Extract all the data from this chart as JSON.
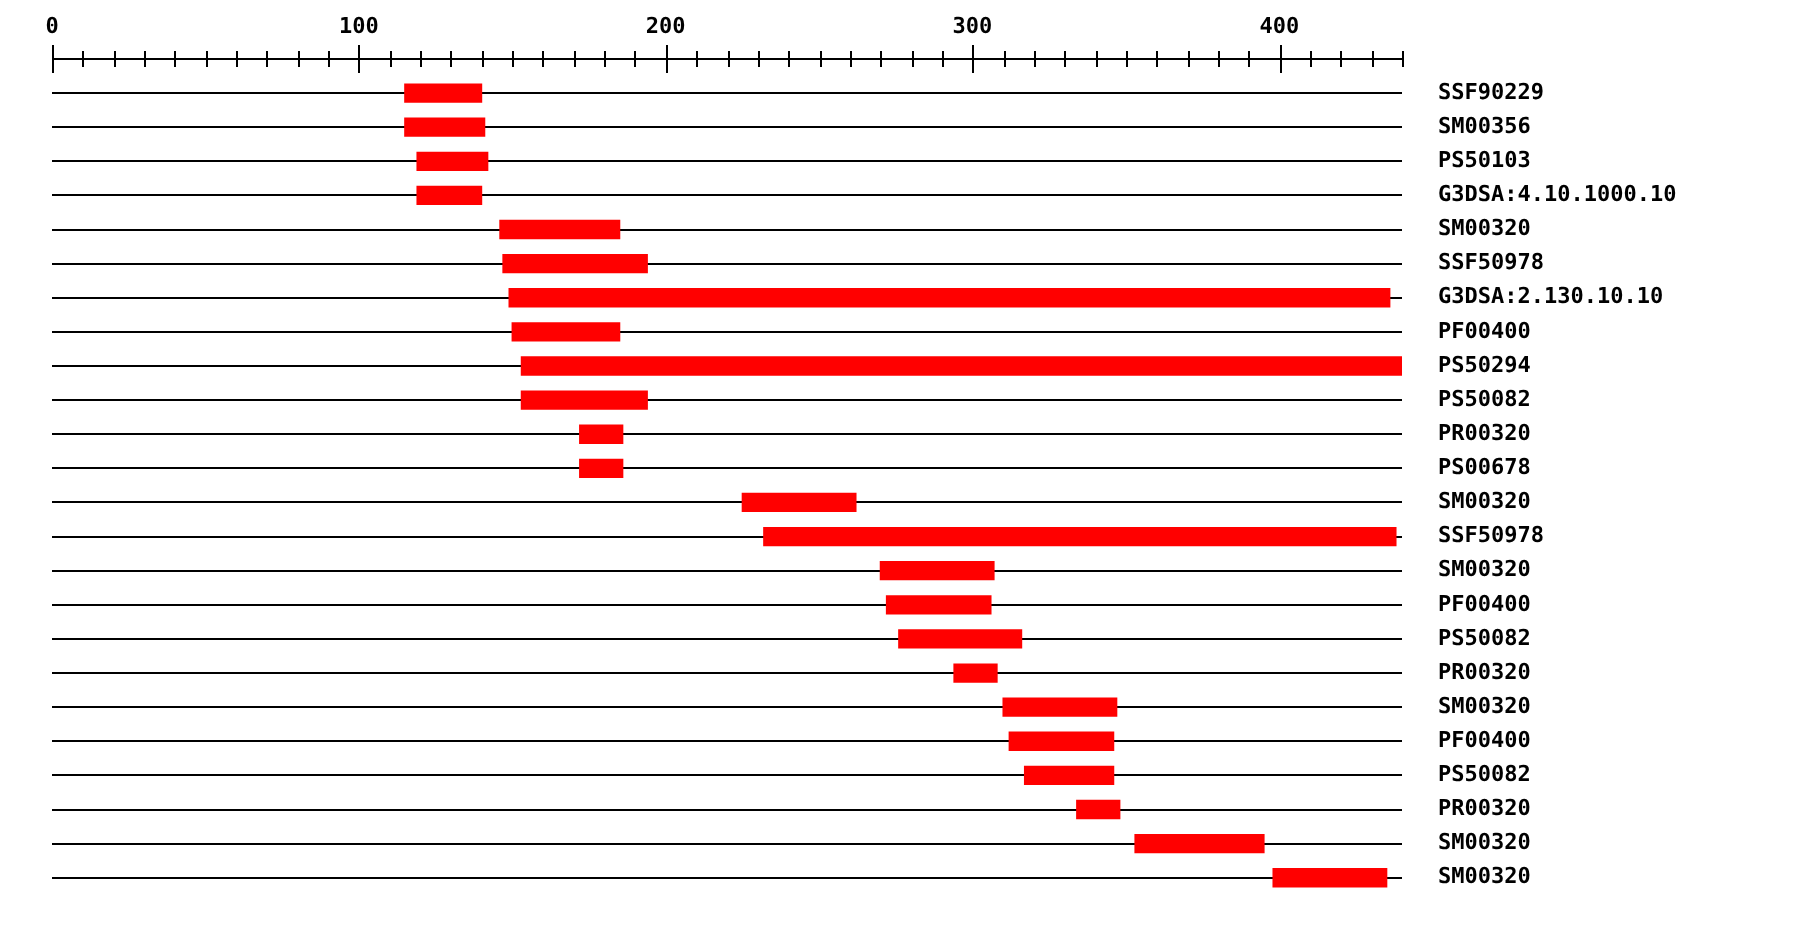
{
  "chart_data": {
    "type": "bar",
    "orientation": "horizontal",
    "categories": [
      "SSF90229",
      "SM00356",
      "PS50103",
      "G3DSA:4.10.1000.10",
      "SM00320",
      "SSF50978",
      "G3DSA:2.130.10.10",
      "PF00400",
      "PS50294",
      "PS50082",
      "PR00320",
      "PS00678",
      "SM00320",
      "SSF50978",
      "SM00320",
      "PF00400",
      "PS50082",
      "PR00320",
      "SM00320",
      "PF00400",
      "PS50082",
      "PR00320",
      "SM00320",
      "SM00320"
    ],
    "base": [
      115,
      115,
      119,
      119,
      146,
      147,
      149,
      150,
      153,
      153,
      172,
      172,
      225,
      232,
      270,
      272,
      276,
      294,
      310,
      312,
      317,
      334,
      353,
      398
    ],
    "values": [
      25,
      26,
      23,
      21,
      39,
      47,
      287,
      35,
      287,
      41,
      14,
      14,
      37,
      206,
      37,
      34,
      40,
      14,
      37,
      34,
      29,
      14,
      42,
      37
    ],
    "color": "#ff0000",
    "xlim": [
      0,
      440
    ],
    "xticks": [
      0,
      {
        "value": 10,
        "label": null
      },
      {
        "value": 20,
        "label": null
      },
      {
        "value": 30,
        "label": null
      },
      {
        "value": 40,
        "label": null
      },
      {
        "value": 50,
        "label": null
      },
      {
        "value": 60,
        "label": null
      },
      {
        "value": 70,
        "label": null
      },
      {
        "value": 80,
        "label": null
      },
      {
        "value": 90,
        "label": null
      },
      100,
      {
        "value": 110,
        "label": null
      },
      {
        "value": 120,
        "label": null
      },
      {
        "value": 130,
        "label": null
      },
      {
        "value": 140,
        "label": null
      },
      {
        "value": 150,
        "label": null
      },
      {
        "value": 160,
        "label": null
      },
      {
        "value": 170,
        "label": null
      },
      {
        "value": 180,
        "label": null
      },
      {
        "value": 190,
        "label": null
      },
      200,
      {
        "value": 210,
        "label": null
      },
      {
        "value": 220,
        "label": null
      },
      {
        "value": 230,
        "label": null
      },
      {
        "value": 240,
        "label": null
      },
      {
        "value": 250,
        "label": null
      },
      {
        "value": 260,
        "label": null
      },
      {
        "value": 270,
        "label": null
      },
      {
        "value": 280,
        "label": null
      },
      {
        "value": 290,
        "label": null
      },
      300,
      {
        "value": 310,
        "label": null
      },
      {
        "value": 320,
        "label": null
      },
      {
        "value": 330,
        "label": null
      },
      {
        "value": 340,
        "label": null
      },
      {
        "value": 350,
        "label": null
      },
      {
        "value": 360,
        "label": null
      },
      {
        "value": 370,
        "label": null
      },
      {
        "value": 380,
        "label": null
      },
      {
        "value": 390,
        "label": null
      },
      400,
      {
        "value": 410,
        "label": null
      },
      {
        "value": 420,
        "label": null
      },
      {
        "value": 430,
        "label": null
      },
      {
        "value": 440,
        "label": null
      }
    ],
    "grid": "y",
    "legend": false
  }
}
